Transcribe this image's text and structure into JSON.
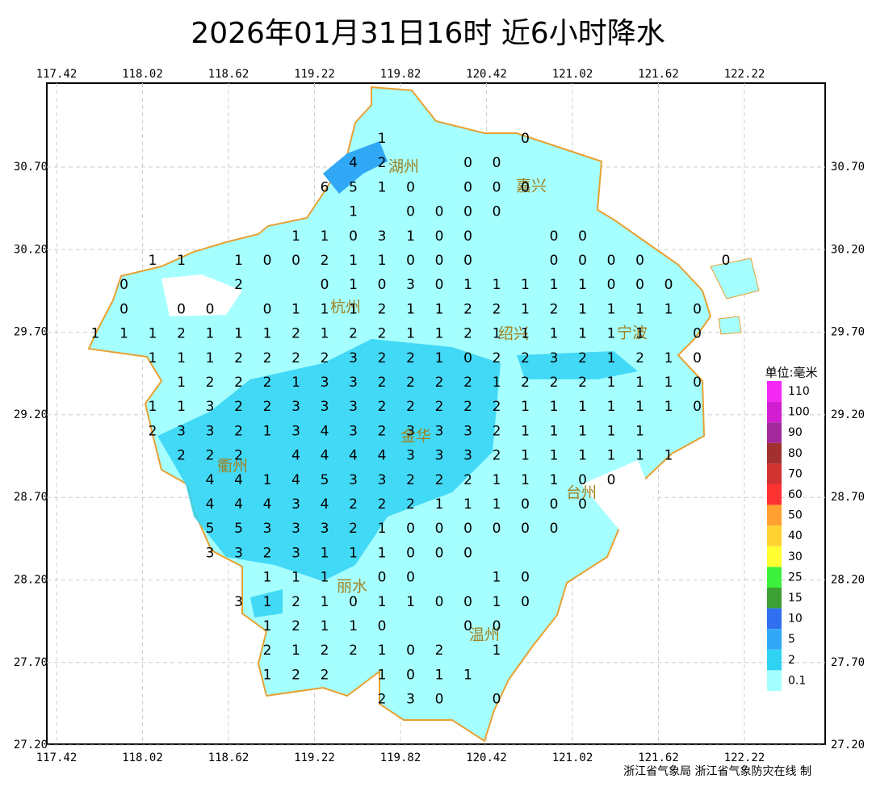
{
  "title": "2026年01月31日16时  近6小时降水",
  "lon_ticks": [
    117.42,
    118.02,
    118.62,
    119.22,
    119.82,
    120.42,
    121.02,
    121.62,
    122.22
  ],
  "lat_ticks": [
    {
      "value": 30.7,
      "label": "30.70"
    },
    {
      "value": 30.2,
      "label": "30.20"
    },
    {
      "value": 29.7,
      "label": "29.70"
    },
    {
      "value": 29.2,
      "label": "29.20"
    },
    {
      "value": 28.7,
      "label": "28.70"
    },
    {
      "value": 28.2,
      "label": "28.20"
    },
    {
      "value": 27.7,
      "label": "27.70"
    },
    {
      "value": 27.2,
      "label": "27.20"
    }
  ],
  "cities": [
    "湖州",
    "嘉兴",
    "杭州",
    "绍兴",
    "宁波",
    "金华",
    "衢州",
    "台州",
    "丽水",
    "温州"
  ],
  "precip_grid": [
    [
      null,
      null,
      null,
      null,
      null,
      null,
      null,
      null,
      null,
      null,
      1,
      null,
      null,
      null,
      null,
      0,
      null,
      null,
      null,
      null,
      null,
      null,
      null
    ],
    [
      null,
      null,
      null,
      null,
      null,
      null,
      null,
      null,
      null,
      4,
      2,
      null,
      null,
      0,
      0,
      null,
      null,
      null,
      null,
      null,
      null,
      null,
      null
    ],
    [
      null,
      null,
      null,
      null,
      null,
      null,
      null,
      null,
      6,
      5,
      1,
      0,
      null,
      0,
      0,
      0,
      null,
      null,
      null,
      null,
      null,
      null,
      null
    ],
    [
      null,
      null,
      null,
      null,
      null,
      null,
      null,
      null,
      null,
      1,
      null,
      0,
      0,
      0,
      0,
      null,
      null,
      null,
      null,
      null,
      null,
      null,
      null
    ],
    [
      null,
      null,
      null,
      null,
      null,
      null,
      null,
      1,
      1,
      0,
      3,
      1,
      0,
      0,
      null,
      null,
      0,
      0,
      null,
      null,
      null,
      null,
      null
    ],
    [
      null,
      null,
      1,
      1,
      null,
      1,
      0,
      0,
      2,
      1,
      1,
      0,
      0,
      0,
      null,
      null,
      0,
      0,
      0,
      0,
      null,
      null,
      0
    ],
    [
      null,
      0,
      null,
      null,
      null,
      2,
      null,
      null,
      0,
      1,
      0,
      3,
      0,
      1,
      1,
      1,
      1,
      1,
      0,
      0,
      0,
      null,
      null
    ],
    [
      null,
      0,
      null,
      0,
      0,
      null,
      0,
      1,
      1,
      1,
      2,
      1,
      1,
      2,
      2,
      1,
      2,
      1,
      1,
      1,
      1,
      0,
      null
    ],
    [
      1,
      1,
      1,
      2,
      1,
      1,
      1,
      2,
      1,
      2,
      2,
      1,
      1,
      2,
      1,
      1,
      1,
      1,
      1,
      1,
      null,
      0,
      null
    ],
    [
      null,
      null,
      1,
      1,
      1,
      2,
      2,
      2,
      2,
      3,
      2,
      2,
      1,
      0,
      2,
      2,
      3,
      2,
      1,
      2,
      1,
      0,
      null
    ],
    [
      null,
      null,
      null,
      1,
      2,
      2,
      2,
      1,
      3,
      3,
      2,
      2,
      2,
      2,
      1,
      2,
      2,
      2,
      1,
      1,
      1,
      0,
      null
    ],
    [
      null,
      null,
      1,
      1,
      3,
      2,
      2,
      3,
      3,
      3,
      2,
      2,
      2,
      2,
      2,
      1,
      1,
      1,
      1,
      1,
      1,
      0,
      null
    ],
    [
      null,
      null,
      2,
      3,
      3,
      2,
      1,
      3,
      4,
      3,
      2,
      3,
      3,
      3,
      2,
      1,
      1,
      1,
      1,
      1,
      null,
      null,
      null
    ],
    [
      null,
      null,
      null,
      2,
      2,
      2,
      null,
      4,
      4,
      4,
      4,
      3,
      3,
      3,
      2,
      1,
      1,
      1,
      1,
      1,
      1,
      null,
      null
    ],
    [
      null,
      null,
      null,
      null,
      4,
      4,
      1,
      4,
      5,
      3,
      3,
      2,
      2,
      2,
      1,
      1,
      1,
      0,
      0,
      null,
      null,
      null,
      null
    ],
    [
      null,
      null,
      null,
      null,
      4,
      4,
      4,
      3,
      4,
      2,
      2,
      2,
      1,
      1,
      1,
      0,
      0,
      0,
      null,
      null,
      null,
      null,
      null
    ],
    [
      null,
      null,
      null,
      null,
      5,
      5,
      3,
      3,
      3,
      2,
      1,
      0,
      0,
      0,
      0,
      0,
      0,
      null,
      null,
      null,
      null,
      null,
      null
    ],
    [
      null,
      null,
      null,
      null,
      3,
      3,
      2,
      3,
      1,
      1,
      1,
      0,
      0,
      0,
      null,
      null,
      null,
      null,
      null,
      null,
      null,
      null,
      null
    ],
    [
      null,
      null,
      null,
      null,
      null,
      null,
      1,
      1,
      1,
      null,
      0,
      0,
      null,
      null,
      1,
      0,
      null,
      null,
      null,
      null,
      null,
      null,
      null
    ],
    [
      null,
      null,
      null,
      null,
      null,
      3,
      1,
      2,
      1,
      0,
      1,
      1,
      0,
      0,
      1,
      0,
      null,
      null,
      null,
      null,
      null,
      null,
      null
    ],
    [
      null,
      null,
      null,
      null,
      null,
      null,
      1,
      2,
      1,
      1,
      0,
      null,
      null,
      0,
      0,
      null,
      null,
      null,
      null,
      null,
      null,
      null,
      null
    ],
    [
      null,
      null,
      null,
      null,
      null,
      null,
      2,
      1,
      2,
      2,
      1,
      0,
      2,
      null,
      1,
      null,
      null,
      null,
      null,
      null,
      null,
      null,
      null
    ],
    [
      null,
      null,
      null,
      null,
      null,
      null,
      1,
      2,
      2,
      null,
      1,
      0,
      1,
      1,
      null,
      null,
      null,
      null,
      null,
      null,
      null,
      null,
      null
    ],
    [
      null,
      null,
      null,
      null,
      null,
      null,
      null,
      null,
      null,
      null,
      2,
      3,
      0,
      null,
      0,
      null,
      null,
      null,
      null,
      null,
      null,
      null,
      null
    ]
  ],
  "legend": {
    "title": "单位:毫米",
    "items": [
      {
        "value": 110,
        "color": "#f428f4"
      },
      {
        "value": 100,
        "color": "#d21ed2"
      },
      {
        "value": 90,
        "color": "#a2289e"
      },
      {
        "value": 80,
        "color": "#a2302e"
      },
      {
        "value": 70,
        "color": "#d23232"
      },
      {
        "value": 60,
        "color": "#ff3232"
      },
      {
        "value": 50,
        "color": "#ffa030"
      },
      {
        "value": 40,
        "color": "#ffd232"
      },
      {
        "value": 30,
        "color": "#ffff32"
      },
      {
        "value": 25,
        "color": "#3cf03c"
      },
      {
        "value": 15,
        "color": "#3ca032"
      },
      {
        "value": 10,
        "color": "#3070f0"
      },
      {
        "value": 5,
        "color": "#30a8f6"
      },
      {
        "value": 2,
        "color": "#30d2f4"
      },
      {
        "value": 0.1,
        "color": "#a6ffff"
      }
    ]
  },
  "footer": "浙江省气象局 浙江省气象防灾在线 制"
}
